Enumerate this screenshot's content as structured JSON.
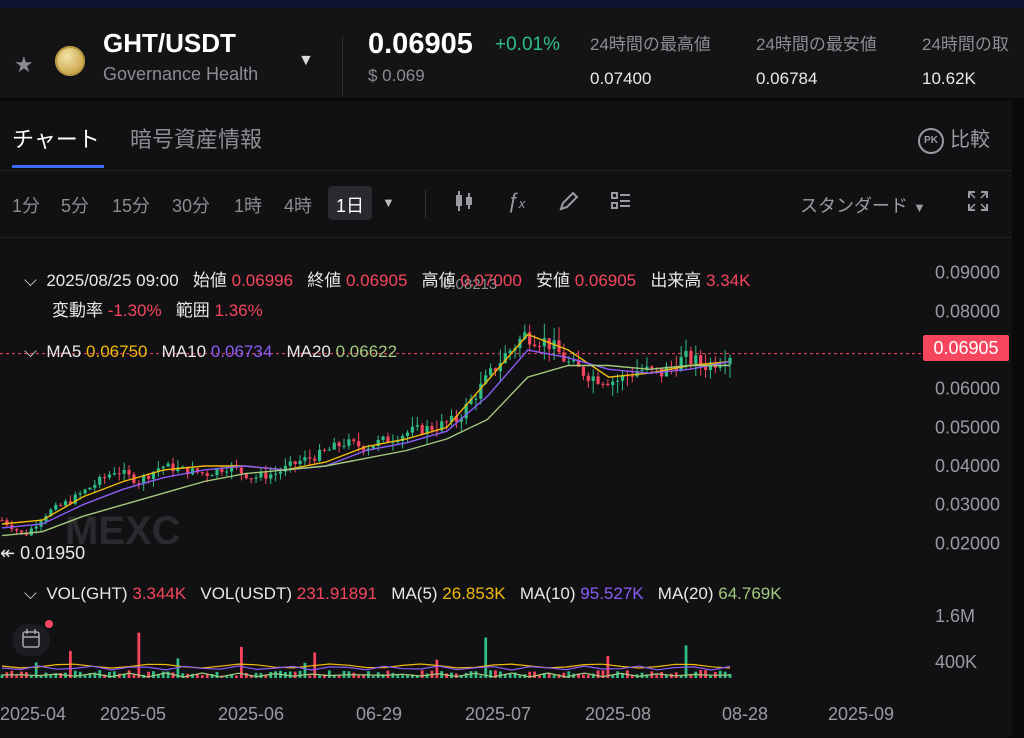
{
  "header": {
    "pair": "GHT/USDT",
    "pair_name": "Governance Health",
    "price": "0.06905",
    "change": "+0.01%",
    "usd": "$ 0.069",
    "stats": [
      {
        "label": "24時間の最高値",
        "value": "0.07400"
      },
      {
        "label": "24時間の最安値",
        "value": "0.06784"
      },
      {
        "label": "24時間の取",
        "value": "10.62K"
      }
    ]
  },
  "tabs": {
    "chart": "チャート",
    "info": "暗号資産情報",
    "compare": "比較",
    "pk": "PK"
  },
  "toolbar": {
    "timeframes": [
      "1分",
      "5分",
      "15分",
      "30分",
      "1時",
      "4時"
    ],
    "active": "1日",
    "style": "スタンダード"
  },
  "ohlc": {
    "datetime": "2025/08/25 09:00",
    "open_label": "始値",
    "open": "0.06996",
    "close_label": "終値",
    "close": "0.06905",
    "high_label": "高値",
    "high": "0.07000",
    "low_label": "安値",
    "low": "0.06905",
    "vol_label": "出来高",
    "vol": "3.34K",
    "rate_label": "変動率",
    "rate": "-1.30%",
    "range_label": "範囲",
    "range": "1.36%"
  },
  "ma": {
    "ma5_label": "MA5",
    "ma5": "0.06750",
    "ma10_label": "MA10",
    "ma10": "0.06734",
    "ma20_label": "MA20",
    "ma20": "0.06622"
  },
  "vol": {
    "ght_label": "VOL(GHT)",
    "ght": "3.344K",
    "usdt_label": "VOL(USDT)",
    "usdt": "231.91891",
    "ma5_label": "MA(5)",
    "ma5": "26.853K",
    "ma10_label": "MA(10)",
    "ma10": "95.527K",
    "ma20_label": "MA(20)",
    "ma20": "64.769K"
  },
  "current_price_tag": "0.06905",
  "high_marker": "0.08213",
  "low_marker": "0.01950",
  "watermark": "MEXC",
  "colors": {
    "up": "#2ebd85",
    "down": "#f6465d",
    "ma5": "#f0b90b",
    "ma10": "#8b5cf6",
    "ma20": "#a3c97d"
  },
  "chart_data": {
    "type": "candlestick",
    "y_ticks": [
      "0.09000",
      "0.08000",
      "0.07000",
      "0.06000",
      "0.05000",
      "0.04000",
      "0.03000",
      "0.02000"
    ],
    "ylim": [
      0.0175,
      0.0925
    ],
    "x_ticks": [
      "2025-04",
      "2025-05",
      "2025-06",
      "06-29",
      "2025-07",
      "2025-08",
      "08-28",
      "2025-09"
    ],
    "vol_ticks": [
      "1.6M",
      "400K"
    ],
    "close_path": [
      0.026,
      0.022,
      0.028,
      0.031,
      0.035,
      0.039,
      0.036,
      0.04,
      0.039,
      0.038,
      0.04,
      0.037,
      0.038,
      0.041,
      0.043,
      0.046,
      0.045,
      0.047,
      0.049,
      0.05,
      0.052,
      0.06,
      0.068,
      0.074,
      0.072,
      0.066,
      0.063,
      0.062,
      0.065,
      0.064,
      0.068,
      0.066,
      0.069
    ],
    "series": [
      {
        "name": "MA5",
        "values": [
          0.025,
          0.026,
          0.032,
          0.036,
          0.039,
          0.04,
          0.04,
          0.039,
          0.041,
          0.045,
          0.047,
          0.05,
          0.062,
          0.074,
          0.07,
          0.063,
          0.064,
          0.066,
          0.067
        ]
      },
      {
        "name": "MA10",
        "values": [
          0.024,
          0.025,
          0.03,
          0.034,
          0.037,
          0.039,
          0.04,
          0.039,
          0.04,
          0.044,
          0.046,
          0.049,
          0.058,
          0.07,
          0.068,
          0.065,
          0.064,
          0.065,
          0.067
        ]
      },
      {
        "name": "MA20",
        "values": [
          0.022,
          0.023,
          0.027,
          0.03,
          0.033,
          0.036,
          0.038,
          0.039,
          0.04,
          0.042,
          0.044,
          0.047,
          0.052,
          0.063,
          0.066,
          0.066,
          0.065,
          0.066,
          0.066
        ]
      }
    ]
  }
}
